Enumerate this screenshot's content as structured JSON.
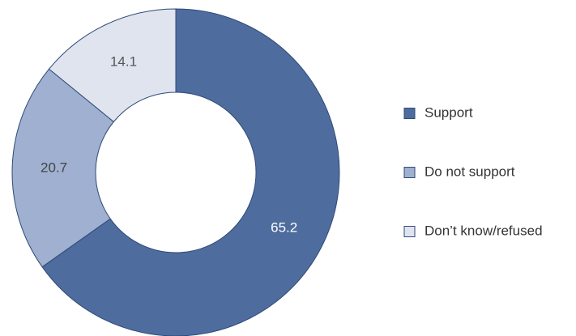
{
  "chart_data": {
    "type": "pie",
    "variant": "donut",
    "categories": [
      "Support",
      "Do not support",
      "Don’t know/refused"
    ],
    "values": [
      65.2,
      20.7,
      14.1
    ],
    "colors": [
      "#4e6c9d",
      "#9fb0d0",
      "#dfe4ef"
    ],
    "label_colors": [
      "#ffffff",
      "#444444",
      "#555555"
    ],
    "title": "",
    "legend_position": "right"
  }
}
